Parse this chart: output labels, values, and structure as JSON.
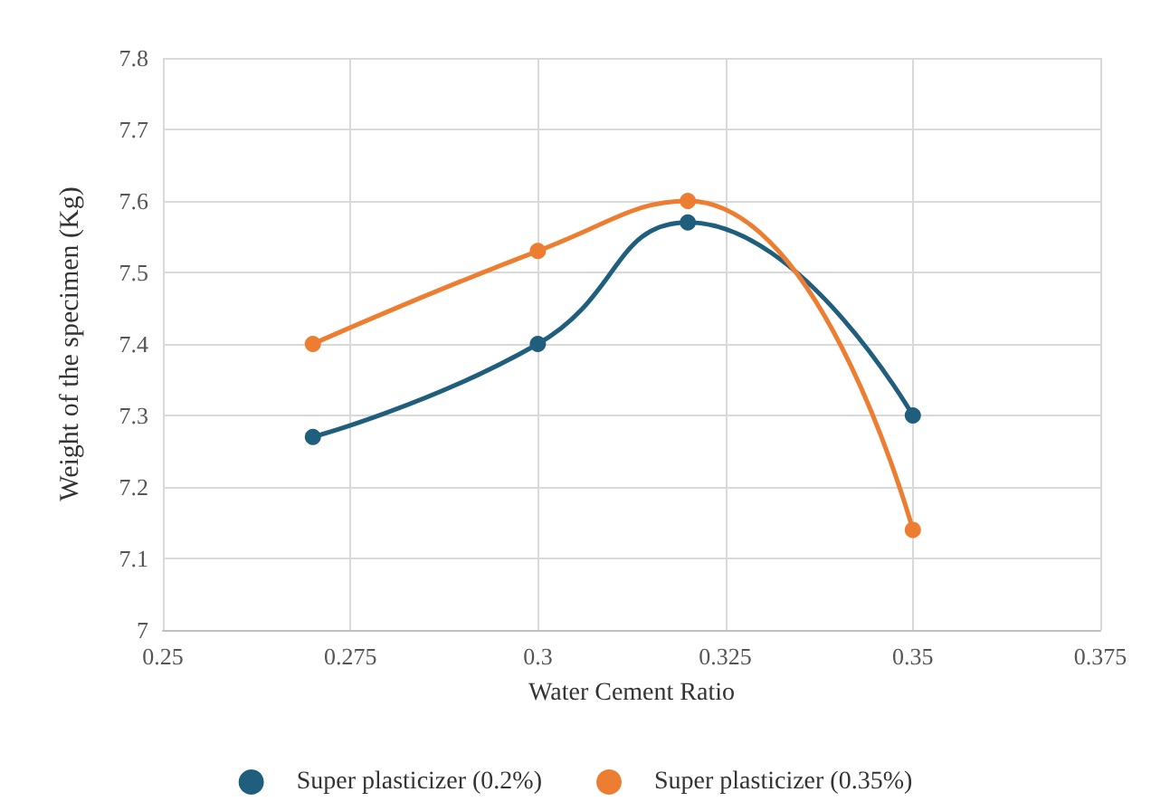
{
  "chart_data": {
    "type": "line",
    "xlabel": "Water Cement Ratio",
    "ylabel": "Weight of the specimen (Kg)",
    "x": [
      0.27,
      0.3,
      0.32,
      0.35
    ],
    "series": [
      {
        "name": "Super plasticizer (0.2%)",
        "color": "#1f5f7d",
        "values": [
          7.27,
          7.4,
          7.57,
          7.3
        ]
      },
      {
        "name": "Super plasticizer (0.35%)",
        "color": "#ed7d31",
        "values": [
          7.4,
          7.53,
          7.6,
          7.14
        ]
      }
    ],
    "xlim": [
      0.25,
      0.375
    ],
    "xticks": [
      0.25,
      0.275,
      0.3,
      0.325,
      0.35,
      0.375
    ],
    "ylim": [
      7,
      7.8
    ],
    "yticks": [
      7,
      7.1,
      7.2,
      7.3,
      7.4,
      7.5,
      7.6,
      7.7,
      7.8
    ],
    "grid": true,
    "legend": "bottom",
    "marker": "circle",
    "line_style": "solid"
  }
}
